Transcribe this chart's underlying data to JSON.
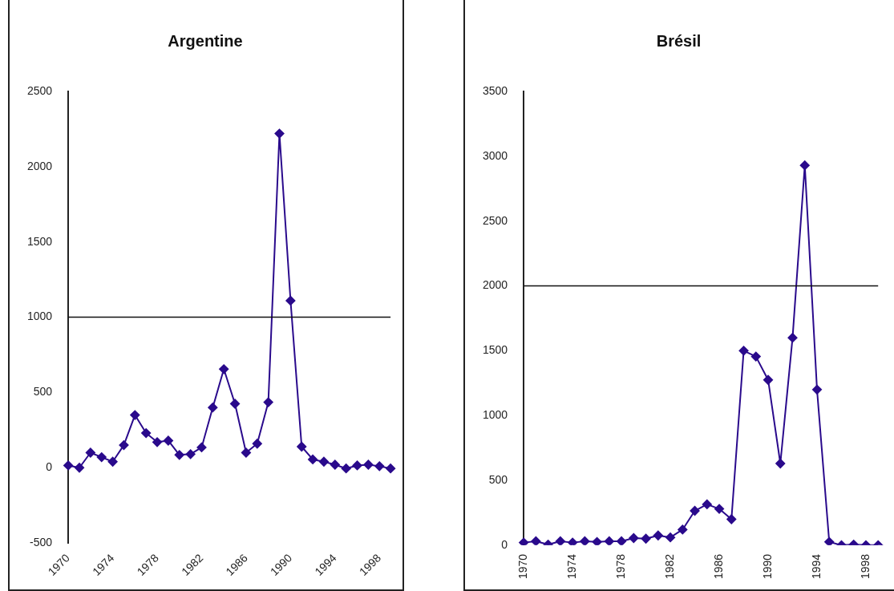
{
  "chart_data": [
    {
      "type": "line",
      "title": "Argentine",
      "categories": [
        "1970",
        null,
        null,
        null,
        "1974",
        null,
        null,
        null,
        "1978",
        null,
        null,
        null,
        "1982",
        null,
        null,
        null,
        "1986",
        null,
        null,
        null,
        "1990",
        null,
        null,
        null,
        "1994",
        null,
        null,
        null,
        "1998",
        null
      ],
      "series": [
        {
          "color": "#2a0a8c",
          "values": [
            15,
            0,
            100,
            70,
            40,
            150,
            350,
            230,
            170,
            180,
            85,
            90,
            135,
            400,
            655,
            425,
            100,
            160,
            435,
            2220,
            1110,
            140,
            55,
            40,
            20,
            -5,
            15,
            20,
            10,
            -5
          ]
        }
      ],
      "ylim": [
        -500,
        2500
      ],
      "yticks": [
        -500,
        0,
        500,
        1000,
        1500,
        2000,
        2500
      ],
      "ref_lines": [
        {
          "axis": "y",
          "value": 1000
        }
      ],
      "marker": "diamond",
      "grid": false,
      "legend": false
    },
    {
      "type": "line",
      "title": "Brésil",
      "categories": [
        "1970",
        null,
        null,
        null,
        "1974",
        null,
        null,
        null,
        "1978",
        null,
        null,
        null,
        "1982",
        null,
        null,
        null,
        "1986",
        null,
        null,
        null,
        "1990",
        null,
        null,
        null,
        "1994",
        null,
        null,
        null,
        "1998",
        null
      ],
      "series": [
        {
          "color": "#2a0a8c",
          "values": [
            20,
            30,
            5,
            30,
            20,
            30,
            25,
            30,
            30,
            55,
            50,
            75,
            60,
            120,
            265,
            315,
            280,
            200,
            1500,
            1455,
            1275,
            630,
            1600,
            2930,
            1200,
            25,
            0,
            5,
            0,
            0
          ]
        }
      ],
      "ylim": [
        0,
        3500
      ],
      "yticks": [
        0,
        500,
        1000,
        1500,
        2000,
        2500,
        3000,
        3500
      ],
      "ref_lines": [
        {
          "axis": "y",
          "value": 2000
        }
      ],
      "marker": "diamond",
      "grid": false,
      "legend": false
    }
  ]
}
